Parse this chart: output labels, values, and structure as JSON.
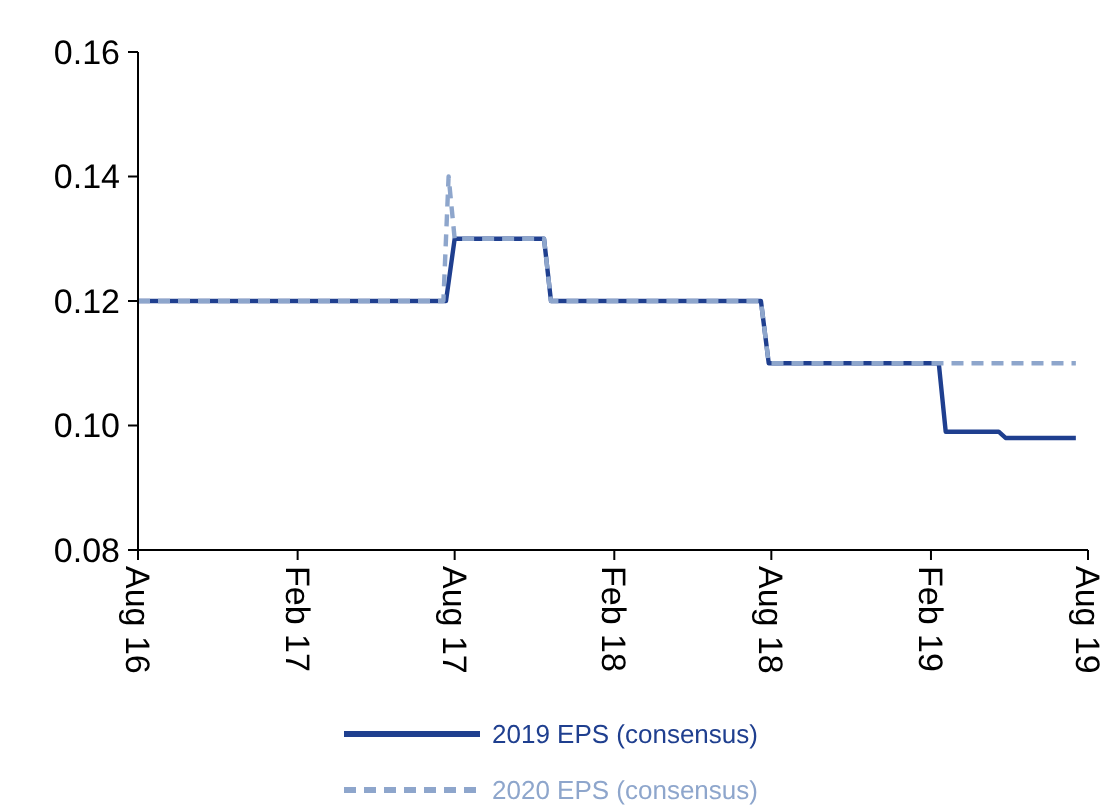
{
  "chart_data": {
    "type": "line",
    "ylim": [
      0.08,
      0.16
    ],
    "yticks": [
      {
        "value": 0.08,
        "label": "0.08"
      },
      {
        "value": 0.1,
        "label": "0.10"
      },
      {
        "value": 0.12,
        "label": "0.12"
      },
      {
        "value": 0.14,
        "label": "0.14"
      },
      {
        "value": 0.16,
        "label": "0.16"
      }
    ],
    "xlim": [
      "2016-08-01",
      "2019-08-01"
    ],
    "xticks": [
      {
        "value": "2016-08-01",
        "label": "Aug 16"
      },
      {
        "value": "2017-02-01",
        "label": "Feb 17"
      },
      {
        "value": "2017-08-01",
        "label": "Aug 17"
      },
      {
        "value": "2018-02-01",
        "label": "Feb 18"
      },
      {
        "value": "2018-08-01",
        "label": "Aug 18"
      },
      {
        "value": "2019-02-01",
        "label": "Feb 19"
      },
      {
        "value": "2019-08-01",
        "label": "Aug 19"
      }
    ],
    "grid": false,
    "legend": "bottom",
    "series": [
      {
        "name": "2019 EPS (consensus)",
        "color": "#1f3f8f",
        "line_style": "solid",
        "x": [
          "2016-08-01",
          "2017-07-22",
          "2017-08-01",
          "2017-11-12",
          "2017-11-20",
          "2018-07-20",
          "2018-07-29",
          "2019-02-10",
          "2019-02-18",
          "2019-04-20",
          "2019-04-28",
          "2019-07-18"
        ],
        "values": [
          0.12,
          0.12,
          0.13,
          0.13,
          0.12,
          0.12,
          0.11,
          0.11,
          0.099,
          0.099,
          0.098,
          0.098
        ]
      },
      {
        "name": "2020 EPS (consensus)",
        "color": "#8ea6cc",
        "line_style": "dashed",
        "x": [
          "2016-08-01",
          "2017-07-19",
          "2017-07-25",
          "2017-08-01",
          "2017-11-12",
          "2017-11-20",
          "2018-07-20",
          "2018-07-29",
          "2019-07-18"
        ],
        "values": [
          0.12,
          0.12,
          0.14,
          0.13,
          0.13,
          0.12,
          0.12,
          0.11,
          0.11
        ]
      }
    ]
  }
}
